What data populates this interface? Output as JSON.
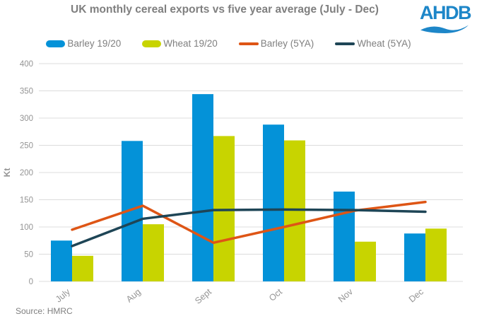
{
  "header": {
    "title": "UK monthly cereal exports vs five year average (July - Dec)",
    "logo_text": "AHDB"
  },
  "source": "Source: HMRC",
  "colors": {
    "barley_bar": "#0492d8",
    "wheat_bar": "#c8d400",
    "barley_line": "#de5515",
    "wheat_line": "#1e4556",
    "logo_blue": "#1d86c8",
    "title_gray": "#7f7f7f",
    "axis_gray": "#949494",
    "gridline": "#dcdcdc"
  },
  "chart_data": {
    "type": "bar+line",
    "title": "UK monthly cereal exports vs five year average (July - Dec)",
    "categories": [
      "July",
      "Aug",
      "Sept",
      "Oct",
      "Nov",
      "Dec"
    ],
    "bar_series": [
      {
        "name": "Barley 19/20",
        "color": "barley_bar",
        "values": [
          75,
          258,
          344,
          288,
          165,
          88
        ]
      },
      {
        "name": "Wheat 19/20",
        "color": "wheat_bar",
        "values": [
          47,
          105,
          267,
          259,
          73,
          97
        ]
      }
    ],
    "line_series": [
      {
        "name": "Barley (5YA)",
        "color": "barley_line",
        "values": [
          95,
          139,
          71,
          100,
          130,
          146
        ]
      },
      {
        "name": "Wheat (5YA)",
        "color": "wheat_line",
        "values": [
          65,
          115,
          131,
          132,
          131,
          128
        ]
      }
    ],
    "xlabel": "",
    "ylabel": "Kt",
    "ylim": [
      0,
      400
    ],
    "ytick_step": 50,
    "grid": true,
    "legend_position": "top"
  }
}
